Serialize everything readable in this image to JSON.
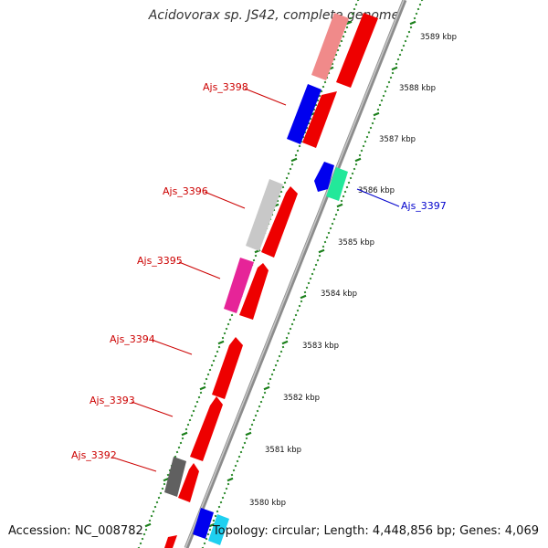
{
  "title": "Acidovorax sp. JS42, complete genome",
  "footer": {
    "accession": "Accession: NC_008782",
    "summary": "Topology: circular; Length: 4,448,856 bp; Genes: 4,069"
  },
  "colors": {
    "backbone": "#8c8c8c",
    "tick": "#1a7f1a",
    "forward_label": "#cc0000",
    "reverse_label": "#0000cc"
  },
  "scale_labels": [
    {
      "kbp": 3589,
      "text": "3589 kbp"
    },
    {
      "kbp": 3588,
      "text": "3588 kbp"
    },
    {
      "kbp": 3587,
      "text": "3587 kbp"
    },
    {
      "kbp": 3586,
      "text": "3586 kbp"
    },
    {
      "kbp": 3585,
      "text": "3585 kbp"
    },
    {
      "kbp": 3584,
      "text": "3584 kbp"
    },
    {
      "kbp": 3583,
      "text": "3583 kbp"
    },
    {
      "kbp": 3582,
      "text": "3582 kbp"
    },
    {
      "kbp": 3581,
      "text": "3581 kbp"
    },
    {
      "kbp": 3580,
      "text": "3580 kbp"
    }
  ],
  "gene_labels": [
    {
      "text": "Ajs_3398",
      "strand": "forward"
    },
    {
      "text": "Ajs_3397",
      "strand": "reverse"
    },
    {
      "text": "Ajs_3396",
      "strand": "forward"
    },
    {
      "text": "Ajs_3395",
      "strand": "forward"
    },
    {
      "text": "Ajs_3394",
      "strand": "forward"
    },
    {
      "text": "Ajs_3393",
      "strand": "forward"
    },
    {
      "text": "Ajs_3392",
      "strand": "forward"
    }
  ]
}
